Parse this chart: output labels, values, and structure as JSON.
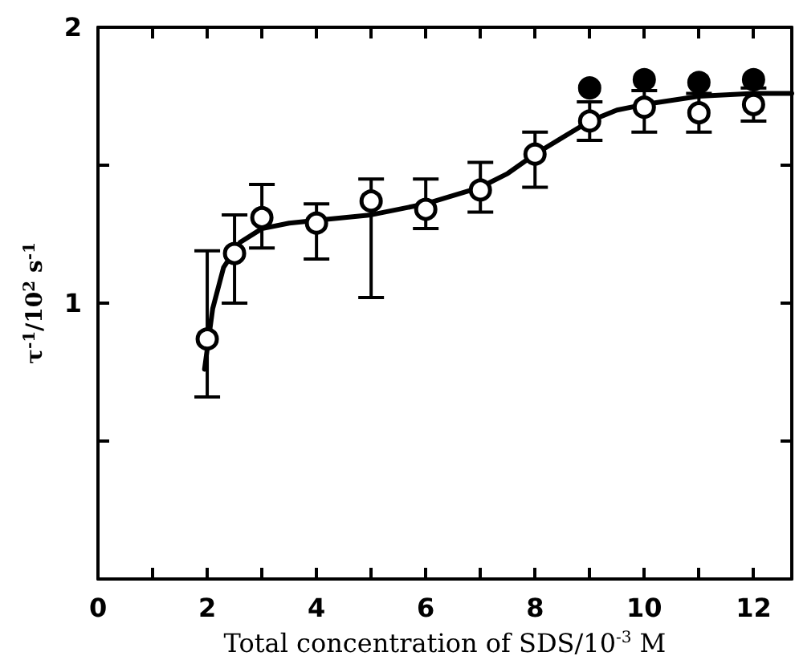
{
  "chart_data": {
    "type": "scatter",
    "xlabel": "Total concentration of SDS/10$^{-3}$ M",
    "ylabel": "τ$^{-1}$/10$^{2}$ s$^{-1}$",
    "xlim": [
      0,
      12.7
    ],
    "xticks": [
      0,
      {
        "value": 1,
        "label": null
      },
      2,
      {
        "value": 3,
        "label": null
      },
      4,
      {
        "value": 5,
        "label": null
      },
      6,
      {
        "value": 7,
        "label": null
      },
      8,
      {
        "value": 9,
        "label": null
      },
      10,
      {
        "value": 11,
        "label": null
      },
      12
    ],
    "ylim": [
      0,
      2
    ],
    "yticks": [
      {
        "value": 0,
        "label": null
      },
      {
        "value": 0.5,
        "label": null
      },
      1,
      {
        "value": 1.5,
        "label": null
      },
      2
    ],
    "grid": false,
    "marker": "circle",
    "series": [
      {
        "type": "line",
        "color": "#000000",
        "marker": "none",
        "line_style": "solid",
        "x": [
          1.95,
          2.1,
          2.3,
          2.6,
          3,
          3.5,
          4,
          5,
          6,
          7,
          7.5,
          8,
          8.5,
          9,
          9.5,
          10,
          11,
          12,
          12.7
        ],
        "values": [
          0.76,
          0.98,
          1.13,
          1.22,
          1.27,
          1.29,
          1.3,
          1.32,
          1.36,
          1.42,
          1.47,
          1.54,
          1.6,
          1.66,
          1.7,
          1.72,
          1.75,
          1.76,
          1.76
        ]
      },
      {
        "color": "#ffffff",
        "x": [
          2,
          2.5,
          3,
          4,
          5,
          6,
          7,
          8,
          9,
          10,
          11,
          12
        ],
        "values": [
          0.87,
          1.18,
          1.31,
          1.29,
          1.37,
          1.34,
          1.41,
          1.54,
          1.66,
          1.71,
          1.69,
          1.72
        ],
        "errors": [
          [
            0.66,
            1.19
          ],
          [
            1.0,
            1.32
          ],
          [
            1.2,
            1.43
          ],
          [
            1.16,
            1.36
          ],
          [
            1.02,
            1.45
          ],
          [
            1.27,
            1.45
          ],
          [
            1.33,
            1.51
          ],
          [
            1.42,
            1.62
          ],
          [
            1.59,
            1.73
          ],
          [
            1.62,
            1.77
          ],
          [
            1.62,
            1.76
          ],
          [
            1.66,
            1.78
          ]
        ]
      },
      {
        "color": "#000000",
        "x": [
          9,
          10,
          11,
          12
        ],
        "values": [
          1.78,
          1.81,
          1.8,
          1.81
        ]
      }
    ]
  }
}
